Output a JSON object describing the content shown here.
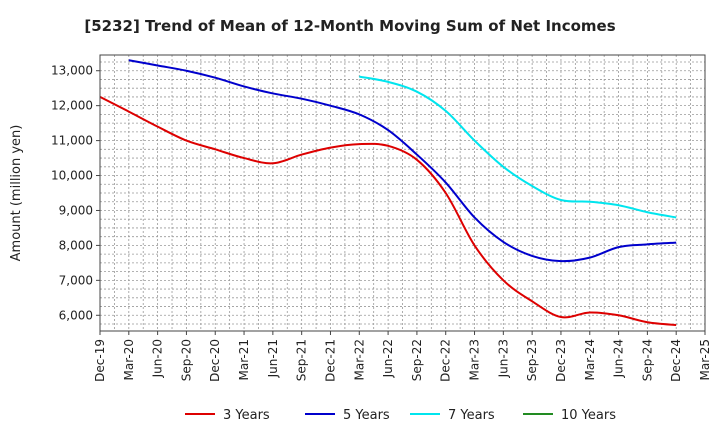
{
  "chart_data": {
    "type": "line",
    "title": "[5232]  Trend of Mean of 12-Month Moving Sum of Net Incomes",
    "xlabel": "",
    "ylabel": "Amount (million yen)",
    "ylim": [
      5550,
      13450
    ],
    "yticks": [
      6000,
      7000,
      8000,
      9000,
      10000,
      11000,
      12000,
      13000
    ],
    "ytick_labels": [
      "6,000",
      "7,000",
      "8,000",
      "9,000",
      "10,000",
      "11,000",
      "12,000",
      "13,000"
    ],
    "x_categories": [
      "Dec-19",
      "Mar-20",
      "Jun-20",
      "Sep-20",
      "Dec-20",
      "Mar-21",
      "Jun-21",
      "Sep-21",
      "Dec-21",
      "Mar-22",
      "Jun-22",
      "Sep-22",
      "Dec-22",
      "Mar-23",
      "Jun-23",
      "Sep-23",
      "Dec-23",
      "Mar-24",
      "Jun-24",
      "Sep-24",
      "Dec-24",
      "Mar-25"
    ],
    "grid": true,
    "legend_position": "bottom",
    "series": [
      {
        "name": "3 Years",
        "color": "#dd0000",
        "points": [
          [
            0,
            12250
          ],
          [
            1,
            11830
          ],
          [
            2,
            11400
          ],
          [
            3,
            11000
          ],
          [
            4,
            10750
          ],
          [
            5,
            10500
          ],
          [
            6,
            10350
          ],
          [
            7,
            10600
          ],
          [
            8,
            10800
          ],
          [
            9,
            10900
          ],
          [
            10,
            10850
          ],
          [
            11,
            10450
          ],
          [
            12,
            9500
          ],
          [
            13,
            8000
          ],
          [
            14,
            7000
          ],
          [
            15,
            6400
          ],
          [
            16,
            5950
          ],
          [
            17,
            6080
          ],
          [
            18,
            6000
          ],
          [
            19,
            5800
          ],
          [
            20,
            5720
          ]
        ]
      },
      {
        "name": "5 Years",
        "color": "#0000cc",
        "points": [
          [
            1,
            13300
          ],
          [
            2,
            13150
          ],
          [
            3,
            13000
          ],
          [
            4,
            12800
          ],
          [
            5,
            12550
          ],
          [
            6,
            12350
          ],
          [
            7,
            12200
          ],
          [
            8,
            12000
          ],
          [
            9,
            11750
          ],
          [
            10,
            11300
          ],
          [
            11,
            10600
          ],
          [
            12,
            9800
          ],
          [
            13,
            8800
          ],
          [
            14,
            8100
          ],
          [
            15,
            7700
          ],
          [
            16,
            7550
          ],
          [
            17,
            7650
          ],
          [
            18,
            7950
          ],
          [
            19,
            8030
          ],
          [
            20,
            8080
          ]
        ]
      },
      {
        "name": "7 Years",
        "color": "#00e5ee",
        "points": [
          [
            9,
            12830
          ],
          [
            10,
            12680
          ],
          [
            11,
            12400
          ],
          [
            12,
            11850
          ],
          [
            13,
            11000
          ],
          [
            14,
            10250
          ],
          [
            15,
            9700
          ],
          [
            16,
            9300
          ],
          [
            17,
            9250
          ],
          [
            18,
            9150
          ],
          [
            19,
            8950
          ],
          [
            20,
            8800
          ]
        ]
      },
      {
        "name": "10 Years",
        "color": "#228b22",
        "points": []
      }
    ]
  }
}
